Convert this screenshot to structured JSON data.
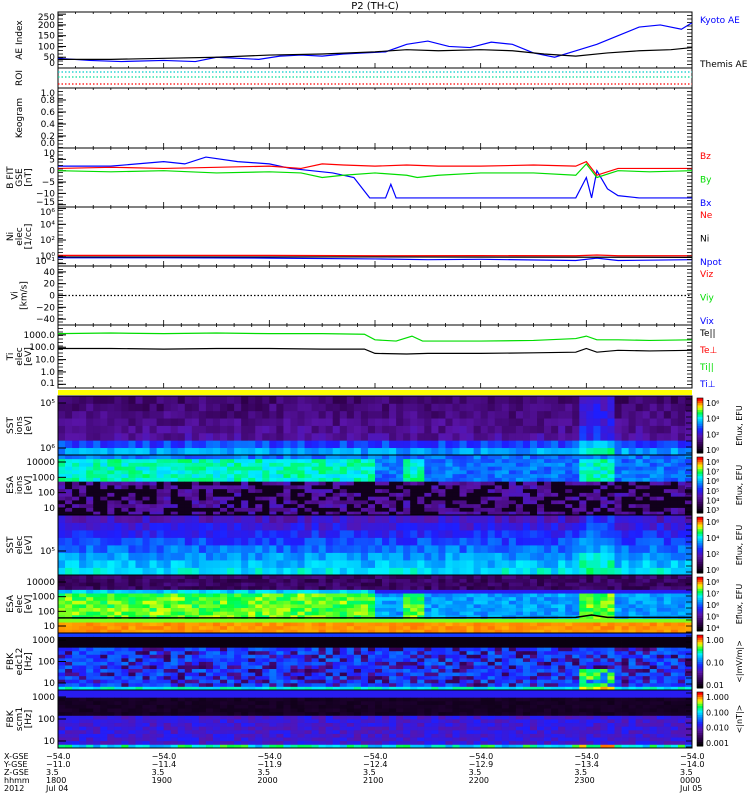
{
  "title": "P2 (TH-C)",
  "colors": {
    "blue": "#0000ff",
    "red": "#ff0000",
    "green": "#00dd00",
    "black": "#000000",
    "cyan": "#00cccc",
    "yellow": "#ffff00"
  },
  "chart_data": {
    "type": "line",
    "title": "P2 (TH-C)",
    "x_unit": "hours UT",
    "xlim": [
      18,
      24
    ],
    "panels": [
      {
        "id": "ae",
        "ylabel": [
          "AE Index"
        ],
        "scale": "lin",
        "ylim": [
          0,
          260
        ],
        "ticks": [
          0,
          50,
          100,
          150,
          200,
          250
        ],
        "tick_labels": [
          "0",
          "50",
          "100",
          "150",
          "200",
          "250"
        ],
        "legend": [
          {
            "text": "Kyoto AE",
            "color": "#0000ff"
          },
          {
            "text": "Themis AE",
            "color": "#000000"
          }
        ],
        "series": [
          {
            "name": "Kyoto AE",
            "color": "#0000ff",
            "x": [
              18,
              18.3,
              18.6,
              19,
              19.3,
              19.5,
              19.7,
              19.9,
              20.1,
              20.3,
              20.5,
              20.7,
              20.9,
              21.1,
              21.3,
              21.5,
              21.7,
              21.9,
              22.1,
              22.3,
              22.5,
              22.7,
              22.9,
              23.1,
              23.3,
              23.5,
              23.7,
              23.9,
              24
            ],
            "y": [
              45,
              35,
              30,
              35,
              30,
              50,
              45,
              40,
              55,
              60,
              55,
              65,
              70,
              75,
              110,
              125,
              100,
              95,
              120,
              110,
              70,
              50,
              80,
              110,
              150,
              190,
              200,
              180,
              210
            ]
          },
          {
            "name": "Themis AE",
            "color": "#000000",
            "x": [
              18,
              18.5,
              19,
              19.5,
              20,
              20.5,
              21,
              21.3,
              21.6,
              22,
              22.3,
              22.6,
              22.9,
              23.2,
              23.5,
              23.8,
              24
            ],
            "y": [
              40,
              40,
              45,
              50,
              60,
              65,
              75,
              85,
              80,
              85,
              80,
              65,
              55,
              70,
              80,
              85,
              95
            ]
          }
        ]
      },
      {
        "id": "roi",
        "ylabel": [
          "ROI"
        ],
        "scale": "lin",
        "ylim": [
          0,
          1
        ],
        "ticks": [],
        "tick_labels": [],
        "legend": [],
        "series": [
          {
            "name": "roi-1",
            "color": "#00cccc",
            "dotted": true,
            "x": [
              18,
              24
            ],
            "y": [
              0.8,
              0.8
            ]
          },
          {
            "name": "roi-2",
            "color": "#00dd99",
            "dotted": true,
            "x": [
              18,
              24
            ],
            "y": [
              0.55,
              0.55
            ]
          },
          {
            "name": "roi-3",
            "color": "#ff0000",
            "dotted": true,
            "x": [
              18,
              24
            ],
            "y": [
              0.2,
              0.2
            ]
          }
        ]
      },
      {
        "id": "keogram",
        "ylabel": [
          "Keogram"
        ],
        "scale": "lin",
        "ylim": [
          0,
          1
        ],
        "ticks": [
          0,
          0.2,
          0.4,
          0.6,
          0.8,
          1.0
        ],
        "tick_labels": [
          "0.0",
          "0.2",
          "0.4",
          "0.6",
          "0.8",
          "1.0"
        ],
        "legend": [],
        "series": []
      },
      {
        "id": "bfit",
        "ylabel": [
          "B FIT",
          "GSE",
          "[nT]"
        ],
        "scale": "lin",
        "ylim": [
          -16,
          10
        ],
        "ticks": [
          -15,
          -10,
          -5,
          0,
          5,
          10
        ],
        "tick_labels": [
          "−15",
          "−10",
          "−5",
          "0",
          "5",
          "10"
        ],
        "legend": [
          {
            "text": "Bz",
            "color": "#ff0000"
          },
          {
            "text": "By",
            "color": "#00dd00"
          },
          {
            "text": "Bx",
            "color": "#0000ff"
          }
        ],
        "series": [
          {
            "name": "Bx",
            "color": "#0000ff",
            "x": [
              18,
              18.5,
              19,
              19.2,
              19.4,
              19.7,
              20,
              20.2,
              20.4,
              20.6,
              20.8,
              20.9,
              20.95,
              21.1,
              21.15,
              21.2,
              21.5,
              22,
              22.5,
              22.9,
              23.0,
              23.05,
              23.1,
              23.2,
              23.3,
              23.5,
              24
            ],
            "y": [
              2,
              2,
              4,
              3,
              6,
              4,
              3,
              1,
              0,
              -1,
              -3,
              -9,
              -12,
              -12,
              -6,
              -12,
              -12,
              -12,
              -12,
              -12,
              -3,
              -12,
              0,
              -8,
              -11,
              -12,
              -12
            ]
          },
          {
            "name": "Bz",
            "color": "#ff0000",
            "x": [
              18,
              18.5,
              19,
              19.5,
              20,
              20.3,
              20.5,
              20.7,
              21,
              21.3,
              21.6,
              22,
              22.5,
              22.9,
              23,
              23.1,
              23.3,
              23.6,
              24
            ],
            "y": [
              1,
              1.5,
              1,
              1.5,
              2,
              1,
              3,
              2.5,
              2,
              2.5,
              2,
              2,
              2.5,
              2,
              4,
              -2,
              1,
              1,
              1
            ]
          },
          {
            "name": "By",
            "color": "#00dd00",
            "x": [
              18,
              18.5,
              19,
              19.5,
              20,
              20.3,
              20.5,
              20.7,
              21,
              21.3,
              21.4,
              21.6,
              22,
              22.5,
              22.9,
              23,
              23.1,
              23.3,
              23.6,
              24
            ],
            "y": [
              0,
              -0.5,
              0,
              -1,
              -0.5,
              -1,
              -3,
              -2,
              -1,
              -2,
              -3,
              -2,
              -1,
              -1,
              -2,
              3,
              -3,
              0,
              -0.5,
              0
            ]
          }
        ]
      },
      {
        "id": "ni",
        "ylabel": [
          "Ni",
          "elec",
          "[1/cc]"
        ],
        "scale": "log",
        "ylim": [
          -1.3,
          6.2
        ],
        "ticks": [
          -1,
          0,
          2,
          4,
          6
        ],
        "tick_labels": [
          "10⁻¹",
          "10⁰",
          "10²",
          "10⁴",
          "10⁶"
        ],
        "legend": [
          {
            "text": "Ne",
            "color": "#ff0000"
          },
          {
            "text": "Ni",
            "color": "#000000"
          },
          {
            "text": "Npot",
            "color": "#0000ff"
          }
        ],
        "series": [
          {
            "name": "Ne",
            "color": "#ff0000",
            "x": [
              18,
              20,
              21,
              22,
              22.9,
              23.1,
              23.3,
              24
            ],
            "y": [
              0.05,
              0.05,
              0.0,
              0.02,
              0.0,
              0.1,
              0.0,
              0.0
            ]
          },
          {
            "name": "Npot",
            "color": "#0000ff",
            "x": [
              18,
              19,
              20,
              21,
              21.5,
              22,
              22.9,
              23.1,
              23.3,
              24
            ],
            "y": [
              -0.25,
              -0.25,
              -0.3,
              -0.4,
              -0.5,
              -0.45,
              -0.6,
              -0.3,
              -0.6,
              -0.5
            ]
          },
          {
            "name": "Ni",
            "color": "#000000",
            "x": [
              18,
              21,
              24
            ],
            "y": [
              -0.15,
              -0.15,
              -0.2
            ]
          }
        ]
      },
      {
        "id": "vi",
        "ylabel": [
          "Vi",
          "[km/s]"
        ],
        "scale": "lin",
        "ylim": [
          -50,
          50
        ],
        "ticks": [
          -40,
          -20,
          0,
          20,
          40
        ],
        "tick_labels": [
          "−40",
          "−20",
          "0",
          "20",
          "40"
        ],
        "legend": [
          {
            "text": "Viz",
            "color": "#ff0000"
          },
          {
            "text": "Viy",
            "color": "#00dd00"
          },
          {
            "text": "Vix",
            "color": "#0000ff"
          }
        ],
        "series": [
          {
            "name": "zero",
            "color": "#000000",
            "dotted": true,
            "x": [
              18,
              24
            ],
            "y": [
              0,
              0
            ]
          }
        ]
      },
      {
        "id": "ti",
        "ylabel": [
          "Ti",
          "elec",
          "[eV]"
        ],
        "scale": "log",
        "ylim": [
          -1.3,
          3.8
        ],
        "ticks": [
          -1,
          0,
          1,
          2,
          3
        ],
        "tick_labels": [
          "0.1",
          "1.0",
          "10.0",
          "100.0",
          "1000.0"
        ],
        "legend": [
          {
            "text": "Te||",
            "color": "#000000"
          },
          {
            "text": "Te⊥",
            "color": "#ff0000"
          },
          {
            "text": "Ti||",
            "color": "#00dd00"
          },
          {
            "text": "Ti⊥",
            "color": "#0000ff"
          }
        ],
        "series": [
          {
            "name": "Te-green",
            "color": "#00dd00",
            "x": [
              18,
              18.5,
              19,
              19.5,
              20,
              20.5,
              20.9,
              21.0,
              21.2,
              21.35,
              21.45,
              21.6,
              22,
              22.5,
              22.9,
              23.0,
              23.1,
              23.3,
              23.6,
              24
            ],
            "y": [
              3.1,
              3.15,
              3.1,
              3.15,
              3.1,
              3.1,
              3.05,
              2.6,
              2.5,
              2.9,
              2.5,
              2.5,
              2.5,
              2.55,
              2.7,
              2.9,
              2.6,
              2.6,
              2.55,
              2.6
            ]
          },
          {
            "name": "Te-black",
            "color": "#000000",
            "x": [
              18,
              18.5,
              19,
              19.5,
              20,
              20.5,
              20.9,
              21.0,
              21.3,
              21.5,
              22,
              22.5,
              22.9,
              23.0,
              23.1,
              23.3,
              23.6,
              24
            ],
            "y": [
              1.9,
              1.9,
              1.85,
              1.9,
              1.9,
              1.85,
              1.85,
              1.5,
              1.45,
              1.5,
              1.5,
              1.55,
              1.6,
              1.9,
              1.6,
              1.75,
              1.7,
              1.75
            ]
          }
        ]
      }
    ],
    "spectrograms": [
      {
        "id": "sst-ion",
        "ylabel": [
          "SST",
          "ions",
          "[eV]"
        ],
        "tick_labels": [
          "10⁶",
          "10⁵"
        ],
        "colorbar_labels": [
          "10⁰",
          "10²",
          "10⁴",
          "10⁶"
        ],
        "colorbar_title": "Eflux, EFU"
      },
      {
        "id": "esa-ion",
        "ylabel": [
          "ESA",
          "ions",
          "[eV]"
        ],
        "tick_labels": [
          "10",
          "100",
          "1000",
          "10000"
        ],
        "colorbar_labels": [
          "10³",
          "10⁴",
          "10⁵",
          "10⁶",
          "10⁷",
          "10⁸"
        ],
        "colorbar_title": "Eflux, EFU"
      },
      {
        "id": "sst-elec",
        "ylabel": [
          "SST",
          "elec",
          "[eV]"
        ],
        "tick_labels": [
          "10⁵"
        ],
        "colorbar_labels": [
          "10⁰",
          "10²",
          "10⁴",
          "10⁶"
        ],
        "colorbar_title": "Eflux, EFU"
      },
      {
        "id": "esa-elec",
        "ylabel": [
          "ESA",
          "elec",
          "[eV]"
        ],
        "tick_labels": [
          "10",
          "100",
          "1000",
          "10000"
        ],
        "colorbar_labels": [
          "10⁴",
          "10⁵",
          "10⁶",
          "10⁷",
          "10⁸"
        ],
        "colorbar_title": "Eflux, EFU"
      },
      {
        "id": "fbk-edc12",
        "ylabel": [
          "FBK",
          "edc12",
          "[Hz]"
        ],
        "tick_labels": [
          "10",
          "100",
          "1000"
        ],
        "colorbar_labels": [
          "0.01",
          "0.10",
          "1.00"
        ],
        "colorbar_title": "<|mV/m|>"
      },
      {
        "id": "fbk-scm1",
        "ylabel": [
          "FBK",
          "scm1",
          "[Hz]"
        ],
        "tick_labels": [
          "10",
          "100",
          "1000"
        ],
        "colorbar_labels": [
          "0.001",
          "0.010",
          "0.100",
          "1.000"
        ],
        "colorbar_title": "<|nT|>"
      }
    ]
  },
  "xaxis": {
    "row_labels": [
      "X-GSE",
      "Y-GSE",
      "Z-GSE",
      "hhmm",
      "2012"
    ],
    "columns": [
      {
        "t": 18,
        "values": [
          "−54.0",
          "−11.0",
          "3.5",
          "1800",
          "Jul 04"
        ]
      },
      {
        "t": 19,
        "values": [
          "−54.0",
          "−11.4",
          "3.5",
          "1900",
          ""
        ]
      },
      {
        "t": 20,
        "values": [
          "−54.0",
          "−11.9",
          "3.5",
          "2000",
          ""
        ]
      },
      {
        "t": 21,
        "values": [
          "−54.0",
          "−12.4",
          "3.5",
          "2100",
          ""
        ]
      },
      {
        "t": 22,
        "values": [
          "−54.0",
          "−12.9",
          "3.5",
          "2200",
          ""
        ]
      },
      {
        "t": 23,
        "values": [
          "−54.0",
          "−13.4",
          "3.5",
          "2300",
          ""
        ]
      },
      {
        "t": 24,
        "values": [
          "−54.0",
          "−14.0",
          "3.5",
          "0000",
          "Jul 05"
        ]
      }
    ]
  }
}
